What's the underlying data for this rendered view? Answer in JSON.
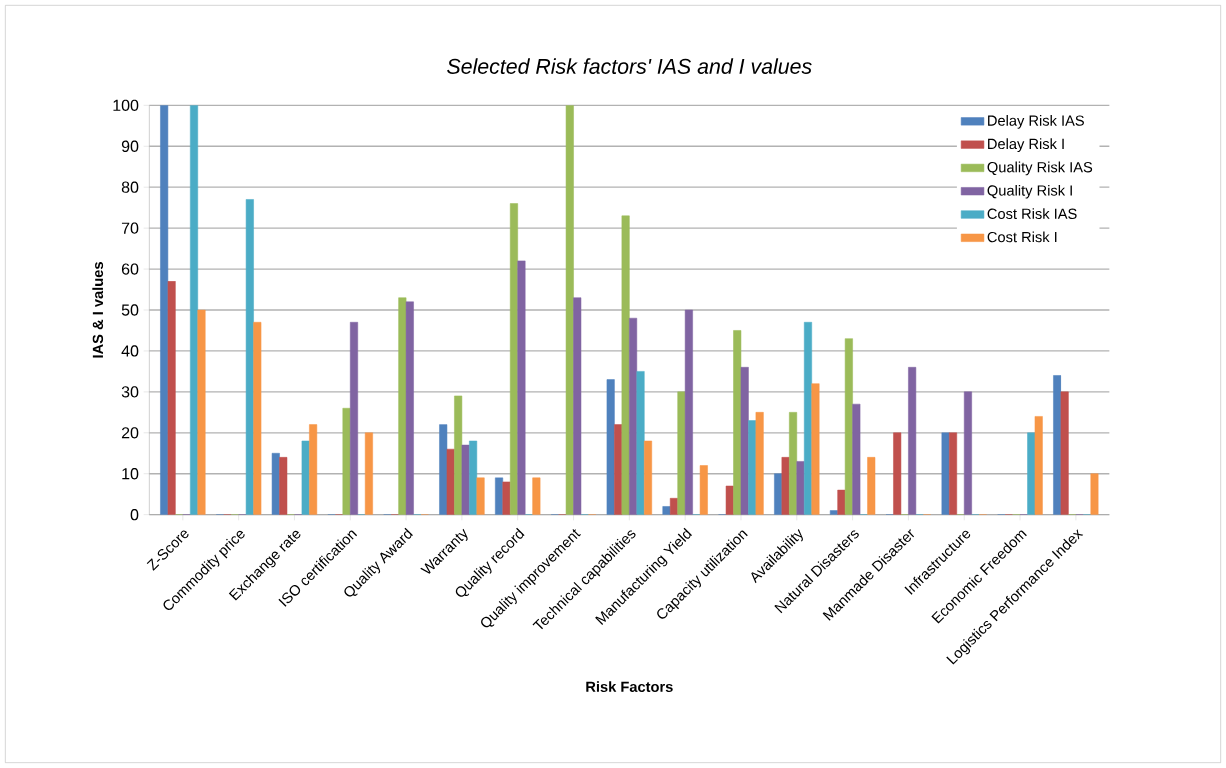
{
  "chart_data": {
    "type": "bar",
    "title": "*Selected Risk factors' IAS and I values*",
    "xlabel": "Risk Factors",
    "ylabel": "IAS & I values",
    "categories": [
      "Z-Score",
      "Commodity price",
      "Exchange rate",
      "ISO certification",
      "Quality Award",
      "Warranty",
      "Quality  record",
      "Quality improvement",
      "Technical capabilities",
      "Manufacturing Yield",
      "Capacity utilization",
      "Availability",
      "Natural Disasters",
      "Manmade Disaster",
      "Infrastructure",
      "Economic Freedom",
      "Logistics Performance Index"
    ],
    "series": [
      {
        "name": "Delay Risk  IAS",
        "color": "#4f81bd",
        "values": [
          100,
          0,
          15,
          0,
          0,
          22,
          9,
          0,
          33,
          2,
          0,
          10,
          1,
          0,
          20,
          0,
          34
        ]
      },
      {
        "name": "Delay Risk  I",
        "color": "#c0504d",
        "values": [
          57,
          0,
          14,
          0,
          0,
          16,
          8,
          0,
          22,
          4,
          7,
          14,
          6,
          20,
          20,
          0,
          30
        ]
      },
      {
        "name": "Quality Risk IAS",
        "color": "#9bbb59",
        "values": [
          0,
          0,
          0,
          26,
          53,
          29,
          76,
          100,
          73,
          30,
          45,
          25,
          43,
          0,
          0,
          0,
          0
        ]
      },
      {
        "name": "Quality Risk I",
        "color": "#8064a2",
        "values": [
          0,
          0,
          0,
          47,
          52,
          17,
          62,
          53,
          48,
          50,
          36,
          13,
          27,
          36,
          30,
          0,
          0
        ]
      },
      {
        "name": "Cost Risk IAS",
        "color": "#4bacc6",
        "values": [
          100,
          77,
          18,
          0,
          0,
          18,
          0,
          0,
          35,
          0,
          23,
          47,
          0,
          0,
          0,
          20,
          0
        ]
      },
      {
        "name": "Cost Risk I",
        "color": "#f79646",
        "values": [
          50,
          47,
          22,
          20,
          0,
          9,
          9,
          0,
          18,
          12,
          25,
          32,
          14,
          0,
          0,
          24,
          10
        ]
      }
    ],
    "ylim": [
      0,
      100
    ],
    "yticks": [
      0,
      10,
      20,
      30,
      40,
      50,
      60,
      70,
      80,
      90,
      100
    ],
    "grid": "y",
    "legend": "top right"
  }
}
